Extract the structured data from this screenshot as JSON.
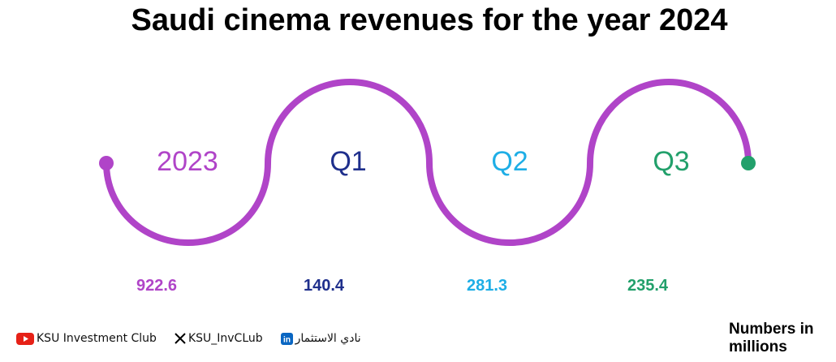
{
  "title": "Saudi cinema revenues for the year 2024",
  "stages": [
    {
      "label": "2023",
      "value": "922.6",
      "color": "#b044c8"
    },
    {
      "label": "Q1",
      "value": "140.4",
      "color": "#1f2f8c"
    },
    {
      "label": "Q2",
      "value": "281.3",
      "color": "#1eaee6"
    },
    {
      "label": "Q3",
      "value": "235.4",
      "color": "#22a06b"
    }
  ],
  "colors": {
    "wave": "#b044c8",
    "start_dot": "#b044c8",
    "end_dot": "#22a06b"
  },
  "footer": {
    "youtube": "KSU Investment Club",
    "x": "KSU_InvCLub",
    "linkedin": "نادي الاستثمار"
  },
  "note": "Numbers in millions"
}
